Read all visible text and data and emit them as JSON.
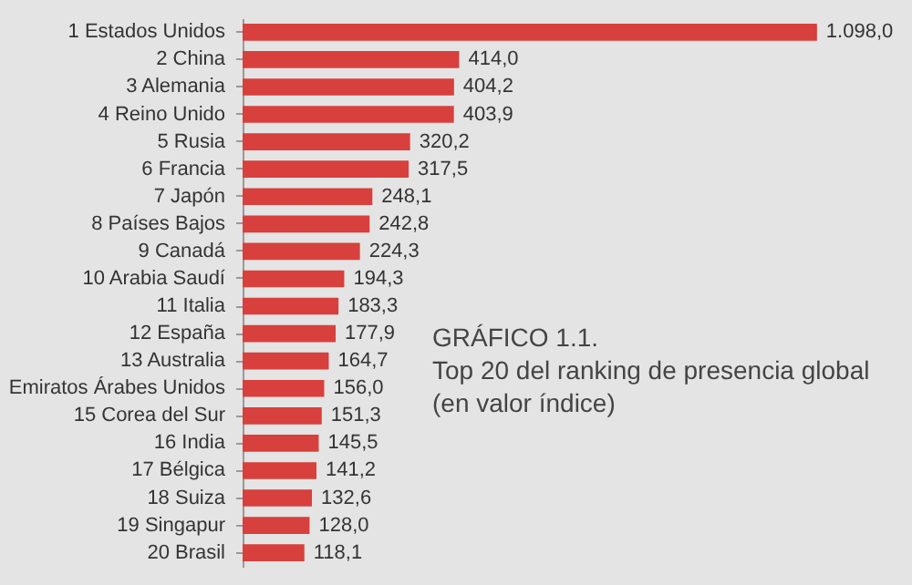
{
  "chart_data": {
    "type": "bar",
    "orientation": "horizontal",
    "title": "GRÁFICO 1.1.",
    "subtitle": "Top 20 del ranking de presencia global (en valor índice)",
    "categories": [
      "1 Estados Unidos",
      "2 China",
      "3 Alemania",
      "4 Reino Unido",
      "5 Rusia",
      "6 Francia",
      "7 Japón",
      "8 Países Bajos",
      "9 Canadá",
      "10 Arabia Saudí",
      "11 Italia",
      "12 España",
      "13 Australia",
      "Emiratos Árabes Unidos",
      "15 Corea del Sur",
      "16 India",
      "17 Bélgica",
      "18 Suiza",
      "19 Singapur",
      "20 Brasil"
    ],
    "values": [
      1098.0,
      414.0,
      404.2,
      403.9,
      320.2,
      317.5,
      248.1,
      242.8,
      224.3,
      194.3,
      183.3,
      177.9,
      164.7,
      156.0,
      151.3,
      145.5,
      141.2,
      132.6,
      128.0,
      118.1
    ],
    "value_labels": [
      "1.098,0",
      "414,0",
      "404,2",
      "403,9",
      "320,2",
      "317,5",
      "248,1",
      "242,8",
      "224,3",
      "194,3",
      "183,3",
      "177,9",
      "164,7",
      "156,0",
      "151,3",
      "145,5",
      "141,2",
      "132,6",
      "128,0",
      "118,1"
    ],
    "color": "#d7403c",
    "tick_labels": "y"
  }
}
